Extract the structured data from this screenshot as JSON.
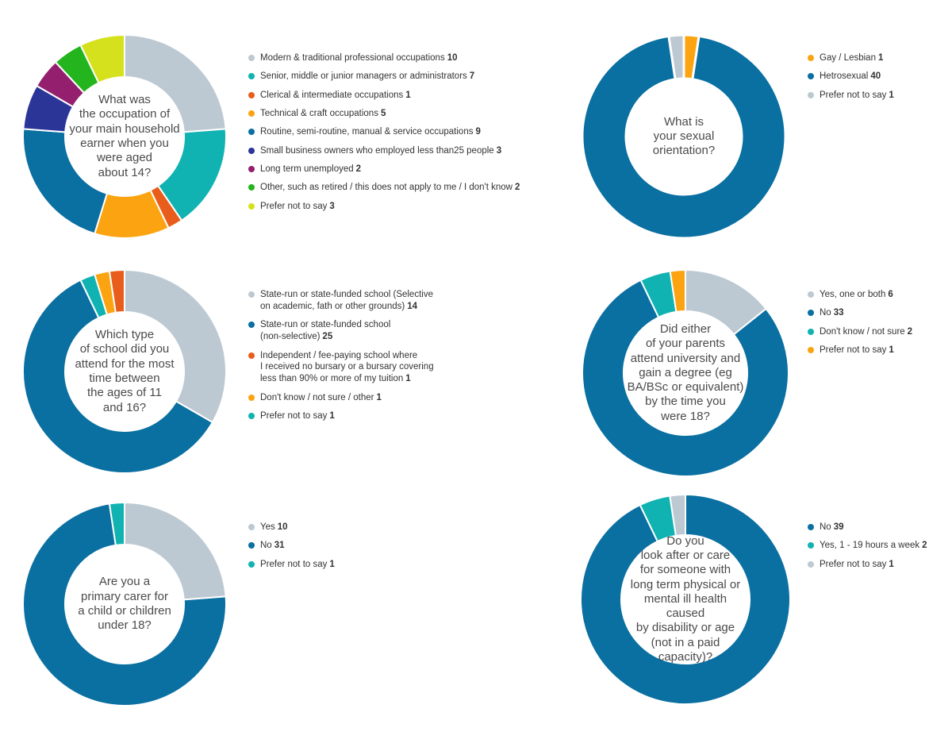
{
  "chart_data": [
    {
      "type": "pie",
      "title": "What was the occupation of your main household earner when you were aged about 14?",
      "title_lines": [
        "What was",
        "the occupation of",
        "your main household",
        "earner when you",
        "were aged",
        "about 14?"
      ],
      "series": [
        {
          "name": "Modern & traditional professional occupations",
          "value": 10,
          "value_text": "10",
          "color": "#bdc9d2"
        },
        {
          "name": "Senior, middle or junior managers or administrators",
          "value": 7,
          "value_text": "7",
          "color": "#10b3b1"
        },
        {
          "name": "Clerical & intermediate occupations",
          "value": 1,
          "value_text": "1",
          "color": "#e85d1b"
        },
        {
          "name": "Technical & craft occupations",
          "value": 5,
          "value_text": "5",
          "color": "#fca311"
        },
        {
          "name": "Routine, semi-routine, manual & service occupations",
          "value": 9,
          "value_text": "9",
          "color": "#0a6fa1"
        },
        {
          "name": "Small business owners who employed less than25 people",
          "value": 3,
          "value_text": "3",
          "color": "#2b3598"
        },
        {
          "name": "Long term unemployed",
          "value": 2,
          "value_text": "2",
          "color": "#941f6e"
        },
        {
          "name": "Other, such as retired / this does not apply to me / I don't know",
          "value": 2,
          "value_text": "2",
          "color": "#24b41d"
        },
        {
          "name": "Prefer not to say",
          "value": 3,
          "value_text": "3",
          "color": "#d6e11d"
        }
      ]
    },
    {
      "type": "pie",
      "title": "What is your sexual orientation?",
      "title_lines": [
        "What is",
        "your sexual",
        "orientation?"
      ],
      "series": [
        {
          "name": "Gay / Lesbian",
          "value": 1,
          "value_text": "1",
          "color": "#fca311"
        },
        {
          "name": "Hetrosexual",
          "value": 40,
          "value_text": "40",
          "color": "#0a6fa1"
        },
        {
          "name": "Prefer not to say",
          "value": 1,
          "value_text": "1",
          "color": "#bdc9d2"
        }
      ]
    },
    {
      "type": "pie",
      "title": "Which type of school did you attend for the most time between the ages of 11 and 16?",
      "title_lines": [
        "Which type",
        "of school did you",
        "attend for the most",
        "time between",
        "the ages of 11",
        "and 16?"
      ],
      "series": [
        {
          "name": "State-run or state-funded school (Selective on academic, fath or other grounds)",
          "name_lines": [
            "State-run or state-funded school (Selective",
            "on academic, fath or other grounds)"
          ],
          "value": 14,
          "value_text": "14",
          "color": "#bdc9d2"
        },
        {
          "name": "State-run or state-funded school (non-selective)",
          "name_lines": [
            "State-run or state-funded school",
            "(non-selective)"
          ],
          "value": 25,
          "value_text": "25",
          "color": "#0a6fa1"
        },
        {
          "name": "Prefer not to say",
          "value": 1,
          "value_text": "1",
          "color": "#10b3b1"
        },
        {
          "name": "Don't know / not sure / other",
          "value": 1,
          "value_text": "1",
          "color": "#fca311"
        },
        {
          "name": "Independent / fee-paying school where I received no bursary or a bursary covering less than 90% or more of my tuition",
          "name_lines": [
            "Independent / fee-paying school where",
            "I received no bursary or a bursary covering",
            "less than 90% or more of my tuition"
          ],
          "value": 1,
          "value_text": "1",
          "color": "#e85d1b"
        }
      ],
      "legend_order": [
        0,
        1,
        4,
        3,
        2
      ]
    },
    {
      "type": "pie",
      "title": "Did either of your parents attend university and gain a degree (eg BA/BSc or equivalent) by the time you were 18?",
      "title_lines": [
        "Did either",
        "of your parents",
        "attend university and",
        "gain a degree (eg",
        "BA/BSc or equivalent)",
        "by the time you",
        "were 18?"
      ],
      "series": [
        {
          "name": "Yes, one or both",
          "value": 6,
          "value_text": "6",
          "color": "#bdc9d2"
        },
        {
          "name": "No",
          "value": 33,
          "value_text": "33",
          "color": "#0a6fa1"
        },
        {
          "name": "Don't know / not sure",
          "value": 2,
          "value_text": "2",
          "color": "#10b3b1"
        },
        {
          "name": "Prefer not to say",
          "value": 1,
          "value_text": "1",
          "color": "#fca311"
        }
      ]
    },
    {
      "type": "pie",
      "title": "Are you a primary carer for a child or children under 18?",
      "title_lines": [
        "Are you a",
        "primary carer for",
        "a child or children",
        "under 18?"
      ],
      "series": [
        {
          "name": "Yes",
          "value": 10,
          "value_text": "10",
          "color": "#bdc9d2"
        },
        {
          "name": "No",
          "value": 31,
          "value_text": "31",
          "color": "#0a6fa1"
        },
        {
          "name": "Prefer not to say",
          "value": 1,
          "value_text": "1",
          "color": "#10b3b1"
        }
      ]
    },
    {
      "type": "pie",
      "title": "Do you look after or care for someone with long term physical or mental ill health caused by disability or age (not in a paid capacity)?",
      "title_lines": [
        "Do you",
        "look after or care",
        "for someone with",
        "long term physical or",
        "mental ill health caused",
        "by disability or age",
        "(not in a paid",
        "capacity)?"
      ],
      "series": [
        {
          "name": "No",
          "value": 39,
          "value_text": "39",
          "color": "#0a6fa1"
        },
        {
          "name": "Yes, 1 - 19 hours a week",
          "value": 2,
          "value_text": "2",
          "color": "#10b3b1"
        },
        {
          "name": "Prefer not to say",
          "value": 1,
          "value_text": "1",
          "color": "#bdc9d2"
        }
      ]
    }
  ]
}
